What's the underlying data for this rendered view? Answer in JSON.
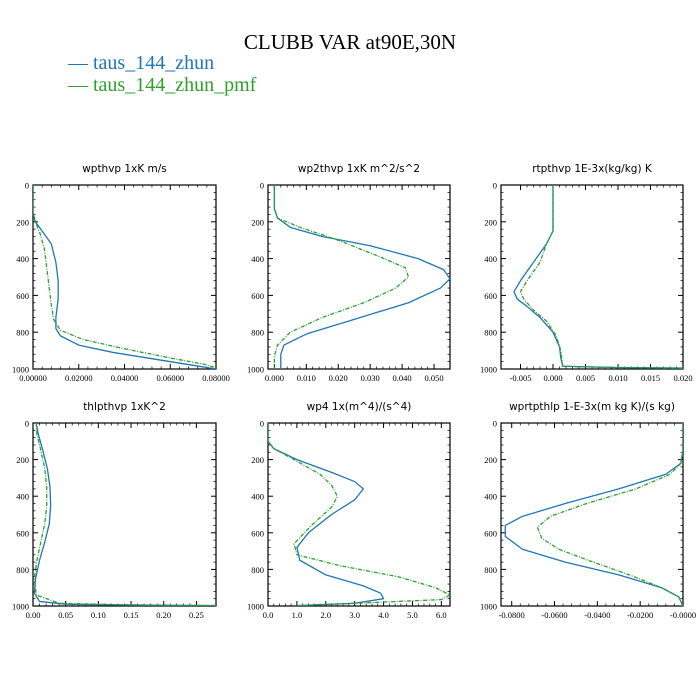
{
  "page": {
    "title": "CLUBB VAR at90E,30N"
  },
  "legend": [
    {
      "label": "taus_144_zhun",
      "color": "#1f77b4",
      "symbol": "—"
    },
    {
      "label": "taus_144_zhun_pmf",
      "color": "#2ca02c",
      "symbol": "—"
    }
  ],
  "chart_data": [
    {
      "type": "line",
      "title": "wpthvp   1xK m/s",
      "xlim": [
        0,
        0.08
      ],
      "ylim": [
        1000,
        0
      ],
      "xticks": [
        "0.00000",
        "0.02000",
        "0.04000",
        "0.06000",
        "0.08000"
      ],
      "yticks": [
        "0",
        "200",
        "400",
        "600",
        "800",
        "1000"
      ],
      "series": [
        {
          "name": "taus_144_zhun",
          "color": "#1f77b4",
          "dashed": false,
          "x": [
            0.0,
            0.0,
            0.001,
            0.004,
            0.008,
            0.01,
            0.011,
            0.011,
            0.01,
            0.01,
            0.012,
            0.02,
            0.035,
            0.055,
            0.07,
            0.08
          ],
          "y": [
            0,
            150,
            200,
            250,
            320,
            420,
            520,
            620,
            720,
            780,
            820,
            870,
            910,
            950,
            980,
            1000
          ]
        },
        {
          "name": "taus_144_zhun_pmf",
          "color": "#2ca02c",
          "dashed": true,
          "x": [
            0.0,
            0.0,
            0.001,
            0.003,
            0.005,
            0.006,
            0.007,
            0.008,
            0.009,
            0.012,
            0.022,
            0.04,
            0.06,
            0.075,
            0.079
          ],
          "y": [
            0,
            150,
            200,
            260,
            350,
            450,
            550,
            650,
            730,
            790,
            840,
            890,
            940,
            975,
            990
          ]
        }
      ]
    },
    {
      "type": "line",
      "title": "wp2thvp   1xK m^2/s^2",
      "xlim": [
        -0.002,
        0.055
      ],
      "ylim": [
        1000,
        0
      ],
      "xticks": [
        "0.000",
        "0.010",
        "0.020",
        "0.030",
        "0.040",
        "0.050"
      ],
      "yticks": [
        "0",
        "200",
        "400",
        "600",
        "800",
        "1000"
      ],
      "series": [
        {
          "name": "taus_144_zhun",
          "color": "#1f77b4",
          "dashed": false,
          "x": [
            0.0,
            0.0,
            0.001,
            0.005,
            0.015,
            0.03,
            0.045,
            0.053,
            0.055,
            0.052,
            0.042,
            0.025,
            0.01,
            0.003,
            0.002,
            0.002
          ],
          "y": [
            0,
            130,
            180,
            230,
            280,
            330,
            400,
            460,
            510,
            560,
            640,
            730,
            810,
            870,
            920,
            1000
          ]
        },
        {
          "name": "taus_144_zhun_pmf",
          "color": "#2ca02c",
          "dashed": true,
          "x": [
            0.0,
            0.0,
            0.001,
            0.008,
            0.02,
            0.033,
            0.041,
            0.042,
            0.038,
            0.028,
            0.015,
            0.005,
            0.001,
            0.0,
            0.0
          ],
          "y": [
            0,
            130,
            180,
            230,
            300,
            390,
            450,
            500,
            560,
            640,
            720,
            800,
            870,
            930,
            1000
          ]
        }
      ]
    },
    {
      "type": "line",
      "title": "rtpthvp   1E-3x(kg/kg) K",
      "xlim": [
        -0.008,
        0.02
      ],
      "ylim": [
        1000,
        0
      ],
      "xticks": [
        "-0.005",
        "0.000",
        "0.005",
        "0.010",
        "0.015",
        "0.020"
      ],
      "yticks": [
        "0",
        "200",
        "400",
        "600",
        "800",
        "1000"
      ],
      "series": [
        {
          "name": "taus_144_zhun",
          "color": "#1f77b4",
          "dashed": false,
          "x": [
            0.0,
            0.0,
            0.0,
            -0.001,
            -0.003,
            -0.005,
            -0.006,
            -0.0055,
            -0.004,
            -0.002,
            0.0,
            0.001,
            0.0012,
            0.0015,
            0.01,
            0.02
          ],
          "y": [
            0,
            150,
            250,
            320,
            420,
            520,
            580,
            620,
            660,
            720,
            800,
            880,
            940,
            985,
            992,
            995
          ]
        },
        {
          "name": "taus_144_zhun_pmf",
          "color": "#2ca02c",
          "dashed": true,
          "x": [
            0.0,
            0.0,
            0.0,
            -0.001,
            -0.002,
            -0.004,
            -0.005,
            -0.0045,
            -0.003,
            -0.001,
            0.0005,
            0.0012,
            0.0015,
            0.01,
            0.02
          ],
          "y": [
            0,
            150,
            250,
            320,
            420,
            520,
            580,
            620,
            680,
            740,
            820,
            900,
            985,
            993,
            996
          ]
        }
      ]
    },
    {
      "type": "line",
      "title": "thlpthvp   1xK^2",
      "xlim": [
        0,
        0.28
      ],
      "ylim": [
        1000,
        0
      ],
      "xticks": [
        "0.00",
        "0.05",
        "0.10",
        "0.15",
        "0.20",
        "0.25"
      ],
      "yticks": [
        "0",
        "200",
        "400",
        "600",
        "800",
        "1000"
      ],
      "series": [
        {
          "name": "taus_144_zhun",
          "color": "#1f77b4",
          "dashed": false,
          "x": [
            0.005,
            0.008,
            0.015,
            0.022,
            0.026,
            0.027,
            0.025,
            0.018,
            0.01,
            0.004,
            0.002,
            0.01,
            0.05,
            0.15,
            0.28
          ],
          "y": [
            0,
            60,
            150,
            250,
            350,
            450,
            550,
            650,
            750,
            850,
            930,
            975,
            990,
            995,
            998
          ]
        },
        {
          "name": "taus_144_zhun_pmf",
          "color": "#2ca02c",
          "dashed": true,
          "x": [
            0.005,
            0.006,
            0.012,
            0.018,
            0.021,
            0.021,
            0.018,
            0.012,
            0.006,
            0.002,
            0.005,
            0.04,
            0.13,
            0.28
          ],
          "y": [
            0,
            60,
            150,
            250,
            350,
            450,
            550,
            650,
            750,
            850,
            940,
            985,
            993,
            997
          ]
        }
      ]
    },
    {
      "type": "line",
      "title": "wp4   1x(m^4)/(s^4)",
      "xlim": [
        0,
        6.3
      ],
      "ylim": [
        1000,
        0
      ],
      "xticks": [
        "0.0",
        "1.0",
        "2.0",
        "3.0",
        "4.0",
        "5.0",
        "6.0"
      ],
      "yticks": [
        "0",
        "200",
        "400",
        "600",
        "800",
        "1000"
      ],
      "series": [
        {
          "name": "taus_144_zhun",
          "color": "#1f77b4",
          "dashed": false,
          "x": [
            0.0,
            0.0,
            0.2,
            1.0,
            2.2,
            3.0,
            3.3,
            3.0,
            2.2,
            1.4,
            1.0,
            1.1,
            2.0,
            3.3,
            3.9,
            4.0,
            3.0,
            1.0
          ],
          "y": [
            0,
            100,
            140,
            200,
            270,
            320,
            360,
            420,
            500,
            600,
            680,
            750,
            830,
            890,
            930,
            960,
            985,
            998
          ]
        },
        {
          "name": "taus_144_zhun_pmf",
          "color": "#2ca02c",
          "dashed": true,
          "x": [
            0.0,
            0.0,
            0.2,
            0.9,
            1.8,
            2.2,
            2.4,
            2.2,
            1.5,
            0.9,
            1.0,
            2.5,
            4.5,
            5.8,
            6.3,
            6.0,
            3.0,
            1.0
          ],
          "y": [
            0,
            100,
            140,
            200,
            280,
            340,
            400,
            460,
            560,
            660,
            720,
            780,
            840,
            900,
            940,
            965,
            985,
            998
          ]
        }
      ]
    },
    {
      "type": "line",
      "title": "wprtpthlp   1-E-3x(m kg K)/(s kg)",
      "xlim": [
        -0.085,
        0.0
      ],
      "ylim": [
        1000,
        0
      ],
      "xticks": [
        "-0.0800",
        "-0.0600",
        "-0.0400",
        "-0.0200",
        "-0.0000"
      ],
      "yticks": [
        "0",
        "200",
        "400",
        "600",
        "800",
        "1000"
      ],
      "series": [
        {
          "name": "taus_144_zhun",
          "color": "#1f77b4",
          "dashed": false,
          "x": [
            0.0,
            0.0,
            -0.001,
            -0.008,
            -0.03,
            -0.055,
            -0.075,
            -0.083,
            -0.083,
            -0.075,
            -0.055,
            -0.03,
            -0.01,
            -0.002,
            0.0
          ],
          "y": [
            0,
            150,
            220,
            280,
            360,
            440,
            510,
            560,
            620,
            690,
            760,
            830,
            900,
            950,
            1000
          ]
        },
        {
          "name": "taus_144_zhun_pmf",
          "color": "#2ca02c",
          "dashed": true,
          "x": [
            0.0,
            0.0,
            -0.001,
            -0.006,
            -0.022,
            -0.045,
            -0.062,
            -0.068,
            -0.066,
            -0.058,
            -0.042,
            -0.025,
            -0.01,
            -0.002,
            0.0
          ],
          "y": [
            0,
            150,
            220,
            280,
            360,
            440,
            510,
            570,
            630,
            690,
            760,
            830,
            900,
            950,
            1000
          ]
        }
      ]
    }
  ]
}
